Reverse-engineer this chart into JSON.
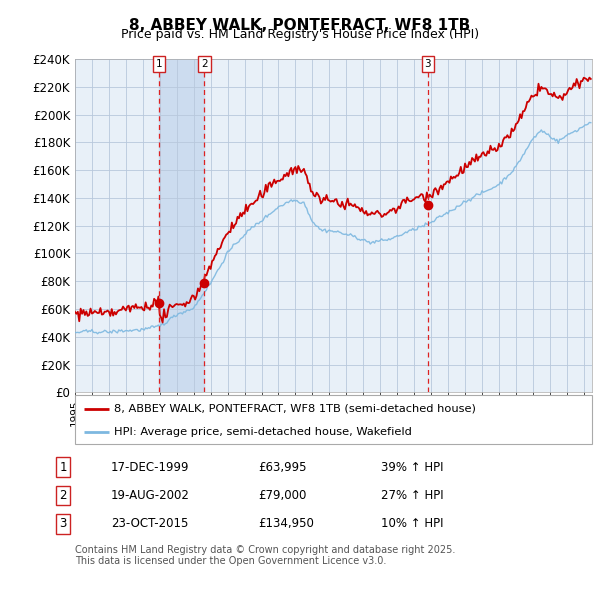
{
  "title": "8, ABBEY WALK, PONTEFRACT, WF8 1TB",
  "subtitle": "Price paid vs. HM Land Registry's House Price Index (HPI)",
  "ylim": [
    0,
    240000
  ],
  "yticks": [
    0,
    20000,
    40000,
    60000,
    80000,
    100000,
    120000,
    140000,
    160000,
    180000,
    200000,
    220000,
    240000
  ],
  "ytick_labels": [
    "£0",
    "£20K",
    "£40K",
    "£60K",
    "£80K",
    "£100K",
    "£120K",
    "£140K",
    "£160K",
    "£180K",
    "£200K",
    "£220K",
    "£240K"
  ],
  "xlim_start": 1995.0,
  "xlim_end": 2025.5,
  "sale_times": [
    1999.958,
    2002.635,
    2015.806
  ],
  "sale_prices": [
    63995,
    79000,
    134950
  ],
  "sale_labels": [
    "1",
    "2",
    "3"
  ],
  "sale_pct_hpi": [
    "39% ↑ HPI",
    "27% ↑ HPI",
    "10% ↑ HPI"
  ],
  "sale_date_labels": [
    "17-DEC-1999",
    "19-AUG-2002",
    "23-OCT-2015"
  ],
  "sale_price_labels": [
    "£63,995",
    "£79,000",
    "£134,950"
  ],
  "legend_line1": "8, ABBEY WALK, PONTEFRACT, WF8 1TB (semi-detached house)",
  "legend_line2": "HPI: Average price, semi-detached house, Wakefield",
  "footnote1": "Contains HM Land Registry data © Crown copyright and database right 2025.",
  "footnote2": "This data is licensed under the Open Government Licence v3.0.",
  "hpi_color": "#7db8e0",
  "price_color": "#cc0000",
  "bg_chart": "#e8f0f8",
  "bg_shade": "#ccdcef",
  "grid_color": "#b8c8dc",
  "vline_color": "#dd2222",
  "title_fontsize": 11,
  "subtitle_fontsize": 9
}
